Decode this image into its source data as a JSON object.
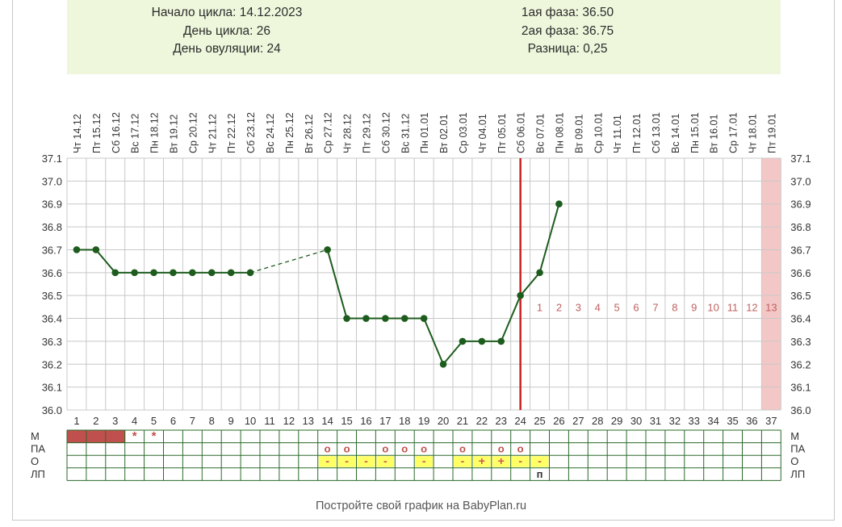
{
  "info": {
    "left_lines": [
      "Начало цикла: 14.12.2023",
      "День цикла: 26",
      "День овуляции: 24"
    ],
    "right_lines": [
      "1ая фаза: 36.50",
      "2ая фаза: 36.75",
      "Разница: 0,25"
    ]
  },
  "footer": "Постройте свой график на BabyPlan.ru",
  "colors": {
    "line": "#1e5c1e",
    "grid": "#c8c8c8",
    "ovulation_line": "#cc2222",
    "menstruation": "#c0504d",
    "phase_number": "#c06060",
    "highlight_cell": "#ffff66",
    "shaded_day": "#f4c7c7",
    "info_bg": "#eef7dc"
  },
  "chart_data": {
    "type": "line",
    "ylim": [
      36.0,
      37.1
    ],
    "y_ticks": [
      "37.1",
      "37.0",
      "36.9",
      "36.8",
      "36.7",
      "36.6",
      "36.5",
      "36.4",
      "36.3",
      "36.2",
      "36.1",
      "36.0"
    ],
    "day_numbers": [
      "1",
      "2",
      "3",
      "4",
      "5",
      "6",
      "7",
      "8",
      "9",
      "10",
      "11",
      "12",
      "13",
      "14",
      "15",
      "16",
      "17",
      "18",
      "19",
      "20",
      "21",
      "22",
      "23",
      "24",
      "25",
      "26",
      "27",
      "28",
      "29",
      "30",
      "31",
      "32",
      "33",
      "34",
      "35",
      "36",
      "37"
    ],
    "weekdays": [
      "Чт",
      "Пт",
      "Сб",
      "Вс",
      "Пн",
      "Вт",
      "Ср",
      "Чт",
      "Пт",
      "Сб",
      "Вс",
      "Пн",
      "Вт",
      "Ср",
      "Чт",
      "Пт",
      "Сб",
      "Вс",
      "Пн",
      "Вт",
      "Ср",
      "Чт",
      "Пт",
      "Сб",
      "Вс",
      "Пн",
      "Вт",
      "Ср",
      "Чт",
      "Пт",
      "Сб",
      "Вс",
      "Пн",
      "Вт",
      "Ср",
      "Чт",
      "Пт"
    ],
    "dates": [
      "14.12",
      "15.12",
      "16.12",
      "17.12",
      "18.12",
      "19.12",
      "20.12",
      "21.12",
      "22.12",
      "23.12",
      "24.12",
      "25.12",
      "26.12",
      "27.12",
      "28.12",
      "29.12",
      "30.12",
      "31.12",
      "01.01",
      "02.01",
      "03.01",
      "04.01",
      "05.01",
      "06.01",
      "07.01",
      "08.01",
      "09.01",
      "10.01",
      "11.01",
      "12.01",
      "13.01",
      "14.01",
      "15.01",
      "16.01",
      "17.01",
      "18.01",
      "19.01"
    ],
    "series": [
      {
        "x": [
          1,
          2,
          3,
          4,
          5,
          6,
          7,
          8,
          9,
          10
        ],
        "values": [
          36.7,
          36.7,
          36.6,
          36.6,
          36.6,
          36.6,
          36.6,
          36.6,
          36.6,
          36.6
        ]
      },
      {
        "x": [
          14,
          15,
          16,
          17,
          18,
          19,
          20,
          21,
          22,
          23,
          24,
          25,
          26
        ],
        "values": [
          36.7,
          36.4,
          36.4,
          36.4,
          36.4,
          36.4,
          36.2,
          36.3,
          36.3,
          36.3,
          36.5,
          36.6,
          36.9
        ]
      }
    ],
    "dashed_gap": {
      "from_day": 10,
      "to_day": 14
    },
    "ovulation_day": 24,
    "phase_numbers": {
      "start_day": 25,
      "labels": [
        "1",
        "2",
        "3",
        "4",
        "5",
        "6",
        "7",
        "8",
        "9",
        "10",
        "11",
        "12",
        "13"
      ]
    },
    "shaded_day": 37,
    "bottom_rows": {
      "labels": [
        "М",
        "ПА",
        "О",
        "ЛП"
      ],
      "menstruation_days": [
        1,
        2,
        3
      ],
      "menstruation_spotting": [
        {
          "day": 4,
          "mark": "*"
        },
        {
          "day": 5,
          "mark": "*"
        }
      ],
      "pa_marks": [
        {
          "day": 14,
          "mark": "o"
        },
        {
          "day": 15,
          "mark": "o"
        },
        {
          "day": 17,
          "mark": "o"
        },
        {
          "day": 18,
          "mark": "o"
        },
        {
          "day": 19,
          "mark": "o"
        },
        {
          "day": 21,
          "mark": "o"
        },
        {
          "day": 23,
          "mark": "o"
        },
        {
          "day": 24,
          "mark": "o"
        }
      ],
      "o_marks": [
        {
          "day": 14,
          "mark": "-"
        },
        {
          "day": 15,
          "mark": "-"
        },
        {
          "day": 16,
          "mark": "-"
        },
        {
          "day": 17,
          "mark": "-"
        },
        {
          "day": 19,
          "mark": "-"
        },
        {
          "day": 21,
          "mark": "-"
        },
        {
          "day": 22,
          "mark": "+"
        },
        {
          "day": 23,
          "mark": "+"
        },
        {
          "day": 24,
          "mark": "-"
        },
        {
          "day": 25,
          "mark": "-"
        }
      ],
      "lp_marks": [
        {
          "day": 25,
          "mark": "п"
        }
      ]
    }
  }
}
